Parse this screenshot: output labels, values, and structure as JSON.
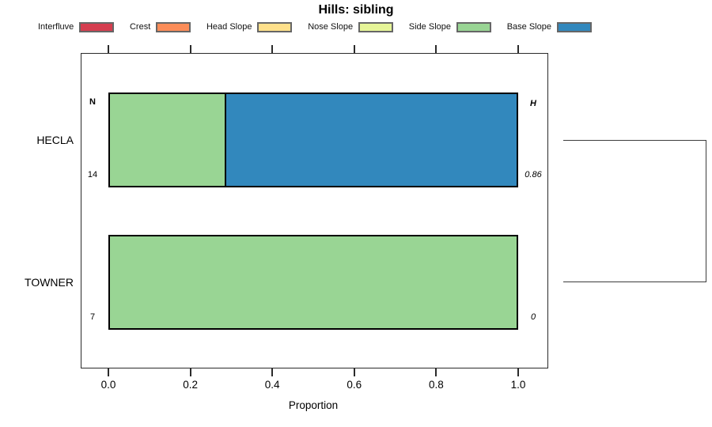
{
  "chart_data": {
    "type": "bar",
    "orientation": "horizontal",
    "stacked": true,
    "title": "Hills: sibling",
    "xlabel": "Proportion",
    "xlim": [
      0,
      1
    ],
    "xticks": [
      "0.0",
      "0.2",
      "0.4",
      "0.6",
      "0.8",
      "1.0"
    ],
    "xtick_values": [
      0,
      0.2,
      0.4,
      0.6,
      0.8,
      1.0
    ],
    "grid": false,
    "legend_position": "top",
    "legend": [
      {
        "label": "Interfluve",
        "color": "#D53E4F"
      },
      {
        "label": "Crest",
        "color": "#FC8D59"
      },
      {
        "label": "Head Slope",
        "color": "#FEE08B"
      },
      {
        "label": "Nose Slope",
        "color": "#E6F598"
      },
      {
        "label": "Side Slope",
        "color": "#99D594"
      },
      {
        "label": "Base Slope",
        "color": "#3288BD"
      }
    ],
    "count_header": "N",
    "index_header": "H",
    "rows": [
      {
        "category": "HECLA",
        "count": "14",
        "index_value": "0.86",
        "segments": [
          {
            "legend": "Side Slope",
            "color": "#99D594",
            "proportion": 0.286
          },
          {
            "legend": "Base Slope",
            "color": "#3288BD",
            "proportion": 0.714
          }
        ]
      },
      {
        "category": "TOWNER",
        "count": "7",
        "index_value": "0",
        "segments": [
          {
            "legend": "Side Slope",
            "color": "#99D594",
            "proportion": 1.0
          }
        ]
      }
    ],
    "sibling_link": {
      "connects": [
        "HECLA",
        "TOWNER"
      ],
      "side": "right"
    }
  }
}
